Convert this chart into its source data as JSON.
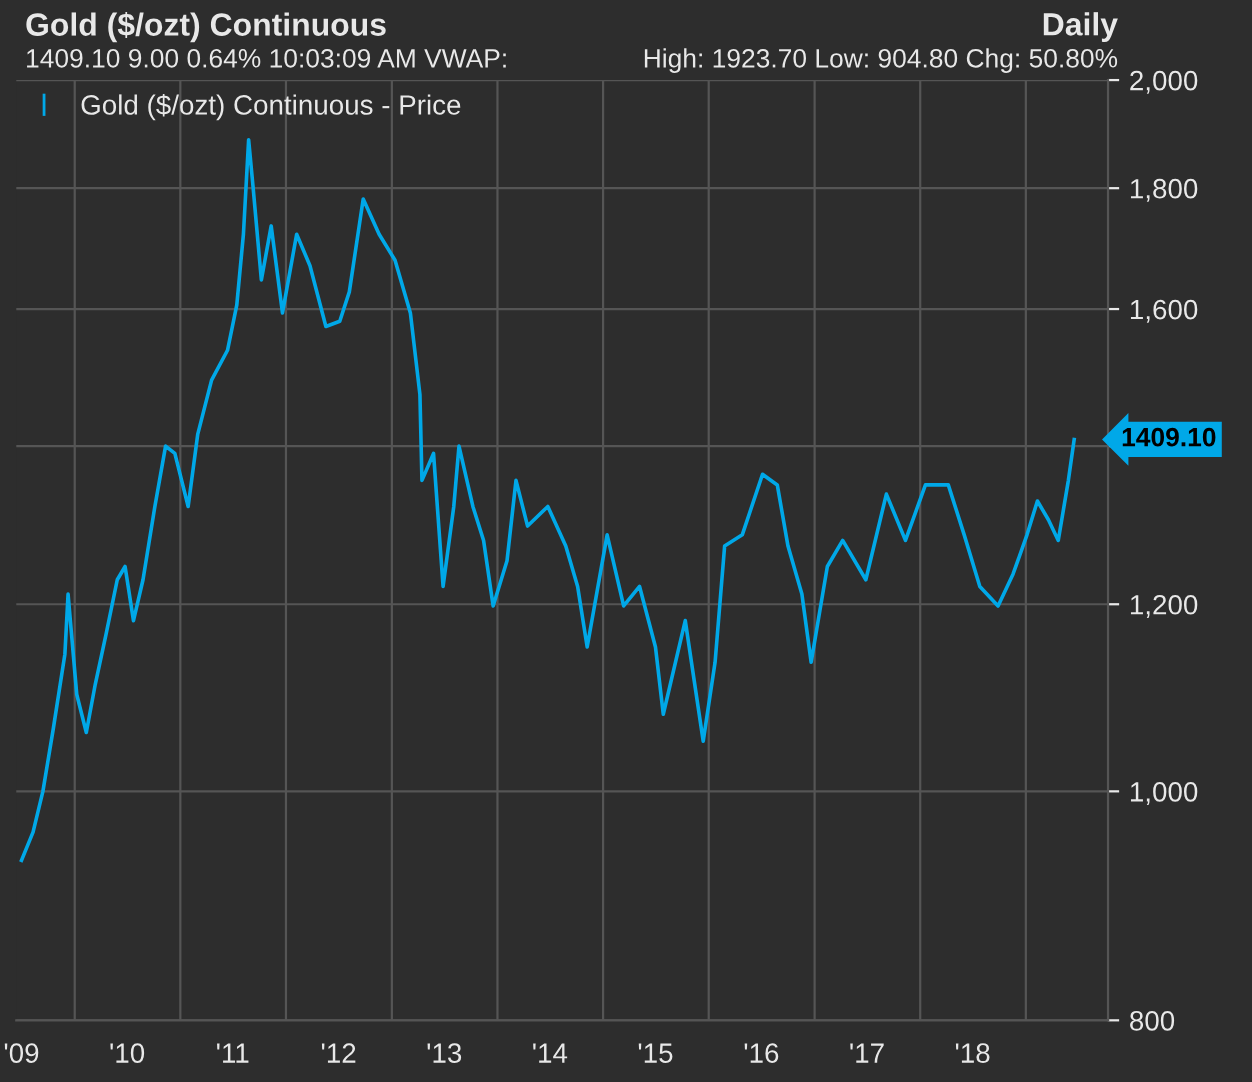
{
  "chart_data": {
    "type": "line",
    "title": "Gold ($/ozt) Continuous",
    "annotations": [
      "Daily",
      "1409.10 9.00 0.64% 10:03:09 AM VWAP:",
      "High: 1923.70 Low: 904.80 Chg: 50.80%",
      {
        "text": "1409.10",
        "x": "2019-06-17",
        "y": 1409.1
      }
    ],
    "series": [
      {
        "name": "Gold ($/ozt) Continuous - Price",
        "color": "#00a8e8",
        "x": [
          "2009-07-01",
          "2009-08-10",
          "2009-09-13",
          "2009-10-19",
          "2009-11-28",
          "2009-12-09",
          "2010-01-08",
          "2010-02-10",
          "2010-03-13",
          "2010-04-19",
          "2010-05-28",
          "2010-06-24",
          "2010-07-23",
          "2010-08-25",
          "2010-10-05",
          "2010-11-11",
          "2010-12-13",
          "2011-01-28",
          "2011-03-02",
          "2011-04-19",
          "2011-06-13",
          "2011-07-15",
          "2011-08-07",
          "2011-08-25",
          "2011-09-09",
          "2011-10-08",
          "2011-11-11",
          "2011-12-20",
          "2012-02-07",
          "2012-03-24",
          "2012-05-18",
          "2012-07-05",
          "2012-08-07",
          "2012-09-24",
          "2012-11-18",
          "2013-01-12",
          "2013-03-06",
          "2013-04-08",
          "2013-04-15",
          "2013-05-25",
          "2013-06-27",
          "2013-08-03",
          "2013-08-21",
          "2013-10-08",
          "2013-11-14",
          "2013-12-17",
          "2014-02-03",
          "2014-03-06",
          "2014-04-15",
          "2014-06-24",
          "2014-08-25",
          "2014-10-05",
          "2014-11-07",
          "2015-01-15",
          "2015-03-13",
          "2015-05-07",
          "2015-07-01",
          "2015-07-28",
          "2015-10-12",
          "2015-12-13",
          "2016-01-23",
          "2016-02-25",
          "2016-04-26",
          "2016-07-05",
          "2016-08-25",
          "2016-10-01",
          "2016-11-18",
          "2016-12-20",
          "2017-02-14",
          "2017-04-08",
          "2017-06-27",
          "2017-09-06",
          "2017-11-11",
          "2018-01-19",
          "2018-04-08",
          "2018-06-02",
          "2018-07-26",
          "2018-09-27",
          "2018-11-18",
          "2019-01-05",
          "2019-02-10",
          "2019-03-20",
          "2019-04-23",
          "2019-05-28",
          "2019-06-17"
        ],
        "values": [
          935,
          961,
          1000,
          1063,
          1143,
          1212,
          1099,
          1059,
          1110,
          1165,
          1229,
          1245,
          1181,
          1229,
          1320,
          1400,
          1390,
          1320,
          1416,
          1493,
          1537,
          1606,
          1721,
          1887,
          1804,
          1646,
          1735,
          1594,
          1721,
          1669,
          1573,
          1581,
          1627,
          1781,
          1721,
          1678,
          1594,
          1472,
          1354,
          1390,
          1221,
          1320,
          1400,
          1320,
          1277,
          1198,
          1252,
          1354,
          1295,
          1320,
          1270,
          1221,
          1151,
          1284,
          1198,
          1221,
          1151,
          1078,
          1181,
          1050,
          1134,
          1270,
          1284,
          1362,
          1348,
          1270,
          1212,
          1134,
          1245,
          1277,
          1229,
          1336,
          1277,
          1348,
          1348,
          1284,
          1221,
          1198,
          1236,
          1284,
          1327,
          1303,
          1277,
          1354,
          1409.1
        ]
      }
    ],
    "log": "y",
    "xlim": [
      "2009-06-13",
      "2019-10-12"
    ],
    "xticks": [
      {
        "value": "2009-07-01",
        "label": "'09"
      },
      {
        "value": "2010-01-01",
        "label": null
      },
      {
        "value": "2010-07-01",
        "label": "'10"
      },
      {
        "value": "2011-01-01",
        "label": null
      },
      {
        "value": "2011-07-01",
        "label": "'11"
      },
      {
        "value": "2012-01-01",
        "label": null
      },
      {
        "value": "2012-07-01",
        "label": "'12"
      },
      {
        "value": "2013-01-01",
        "label": null
      },
      {
        "value": "2013-07-01",
        "label": "'13"
      },
      {
        "value": "2014-01-01",
        "label": null
      },
      {
        "value": "2014-07-01",
        "label": "'14"
      },
      {
        "value": "2015-01-01",
        "label": null
      },
      {
        "value": "2015-07-01",
        "label": "'15"
      },
      {
        "value": "2016-01-01",
        "label": null
      },
      {
        "value": "2016-07-01",
        "label": "'16"
      },
      {
        "value": "2017-01-01",
        "label": null
      },
      {
        "value": "2017-07-01",
        "label": "'17"
      },
      {
        "value": "2018-01-01",
        "label": null
      },
      {
        "value": "2018-07-01",
        "label": "'18"
      },
      {
        "value": "2019-01-01",
        "label": null
      }
    ],
    "ylim": [
      800,
      2000
    ],
    "yticks": [
      800,
      {
        "value": 1000,
        "label": "1,000"
      },
      {
        "value": 1200,
        "label": "1,200"
      },
      {
        "value": 1400,
        "label": null
      },
      {
        "value": 1600,
        "label": "1,600"
      },
      {
        "value": 1800,
        "label": "1,800"
      },
      {
        "value": 2000,
        "label": "2,000"
      }
    ],
    "grid": true,
    "legend": "top left",
    "marker": "none",
    "line_style": "solid"
  }
}
